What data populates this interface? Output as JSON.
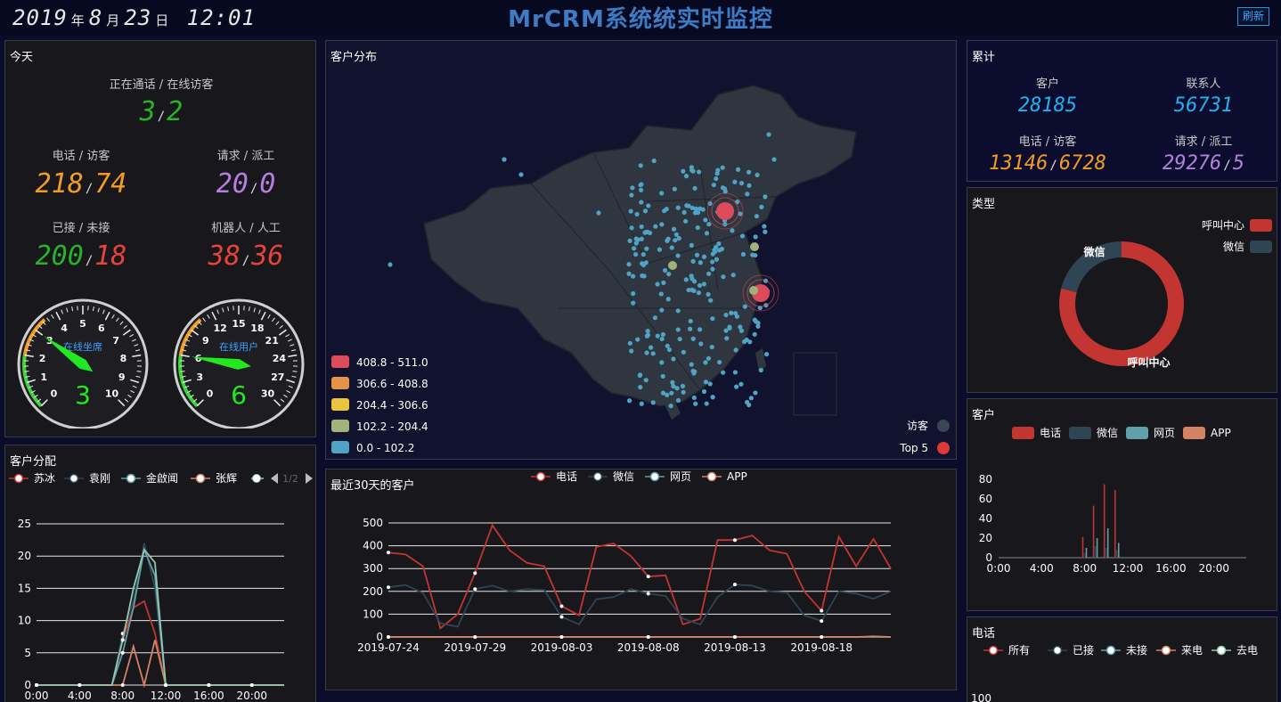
{
  "header": {
    "year": "2019",
    "y_unit": "年",
    "month": "8",
    "m_unit": "月",
    "day": "23",
    "d_unit": "日",
    "time": "12:01",
    "title": "MrCRM系统统实时监控",
    "refresh_label": "刷新"
  },
  "today": {
    "title": "今天",
    "live_label": "正在通话 / 在线访客",
    "live_calls": "3",
    "live_visitors": "2",
    "calls_label": "电话 / 访客",
    "calls": "218",
    "visitors": "74",
    "requests_label": "请求 / 派工",
    "requests": "20",
    "dispatch": "0",
    "answered_label": "已接 / 未接",
    "answered": "200",
    "missed": "18",
    "robot_label": "机器人 / 人工",
    "robot": "38",
    "human": "36",
    "gauge1": {
      "label": "在线坐席",
      "value": "3",
      "max": 10,
      "ticks": [
        "0",
        "1",
        "2",
        "3",
        "4",
        "5",
        "6",
        "7",
        "8",
        "9",
        "10"
      ]
    },
    "gauge2": {
      "label": "在线用户",
      "value": "6",
      "max": 30,
      "ticks": [
        "0",
        "3",
        "6",
        "9",
        "12",
        "15",
        "18",
        "21",
        "24",
        "27",
        "30"
      ]
    }
  },
  "distribution": {
    "title": "客户分配",
    "legend": [
      "苏冰",
      "袁刚",
      "金啟闻",
      "张辉"
    ],
    "pager": "1/2",
    "colors": {
      "苏冰": "#c23531",
      "袁刚": "#2f4554",
      "金啟闻": "#61a0a8",
      "张辉": "#d48265"
    }
  },
  "map": {
    "title": "客户分布",
    "ranges": [
      {
        "label": "408.8 - 511.0",
        "color": "#dd4b5a"
      },
      {
        "label": "306.6 - 408.8",
        "color": "#e4944a"
      },
      {
        "label": "204.4 - 306.6",
        "color": "#e8c53a"
      },
      {
        "label": "102.2 - 204.4",
        "color": "#9fb37a"
      },
      {
        "label": "0.0 - 102.2",
        "color": "#4fa3c4"
      }
    ],
    "series_legend": [
      {
        "label": "访客",
        "color": "#3a4656"
      },
      {
        "label": "Top 5",
        "color": "#dc3a3a"
      }
    ]
  },
  "last30": {
    "title": "最近30天的客户",
    "legend": [
      "电话",
      "微信",
      "网页",
      "APP"
    ]
  },
  "totals": {
    "title": "累计",
    "customers_label": "客户",
    "customers": "28185",
    "contacts_label": "联系人",
    "contacts": "56731",
    "calls_label": "电话 / 访客",
    "calls": "13146",
    "visitors": "6728",
    "requests_label": "请求 / 派工",
    "requests": "29276",
    "dispatch": "5"
  },
  "types": {
    "title": "类型",
    "legend": [
      {
        "label": "呼叫中心",
        "color": "#c23531"
      },
      {
        "label": "微信",
        "color": "#2f4554"
      }
    ]
  },
  "customers": {
    "title": "客户",
    "legend": [
      {
        "label": "电话",
        "color": "#c23531"
      },
      {
        "label": "微信",
        "color": "#2f4554"
      },
      {
        "label": "网页",
        "color": "#61a0a8"
      },
      {
        "label": "APP",
        "color": "#d48265"
      }
    ]
  },
  "phone": {
    "title": "电话",
    "legend": [
      "所有",
      "已接",
      "未接",
      "来电",
      "去电"
    ],
    "y_tick_top": "100"
  },
  "chart_data": [
    {
      "type": "line",
      "id": "distribution",
      "x": [
        "0:00",
        "1:00",
        "2:00",
        "3:00",
        "4:00",
        "5:00",
        "6:00",
        "7:00",
        "8:00",
        "9:00",
        "10:00",
        "11:00",
        "12:00",
        "13:00",
        "14:00",
        "15:00",
        "16:00",
        "17:00",
        "18:00",
        "19:00",
        "20:00",
        "21:00",
        "22:00",
        "23:00"
      ],
      "xticks": [
        "0:00",
        "4:00",
        "8:00",
        "12:00",
        "16:00",
        "20:00"
      ],
      "ylim": [
        0,
        25
      ],
      "yticks": [
        "0",
        "5",
        "10",
        "15",
        "20",
        "25"
      ],
      "series": [
        {
          "name": "苏冰",
          "color": "#c23531",
          "values": [
            0,
            0,
            0,
            0,
            0,
            0,
            0,
            0,
            7,
            12,
            13,
            8,
            0,
            0,
            0,
            0,
            0,
            0,
            0,
            0,
            0,
            0,
            0,
            0
          ]
        },
        {
          "name": "袁刚",
          "color": "#2f4554",
          "values": [
            0,
            0,
            0,
            0,
            0,
            0,
            0,
            0,
            8,
            13,
            22,
            15,
            0,
            0,
            0,
            0,
            0,
            0,
            0,
            0,
            0,
            0,
            0,
            0
          ]
        },
        {
          "name": "金啟闻",
          "color": "#61a0a8",
          "values": [
            0,
            0,
            0,
            0,
            0,
            0,
            0,
            0,
            5,
            12,
            21,
            17,
            0,
            0,
            0,
            0,
            0,
            0,
            0,
            0,
            0,
            0,
            0,
            0
          ]
        },
        {
          "name": "张辉",
          "color": "#d48265",
          "values": [
            0,
            0,
            0,
            0,
            0,
            0,
            0,
            0,
            0,
            6,
            0,
            7,
            0,
            0,
            0,
            0,
            0,
            0,
            0,
            0,
            0,
            0,
            0,
            0
          ]
        },
        {
          "name": "",
          "color": "#91c7ae",
          "values": [
            0,
            0,
            0,
            0,
            0,
            0,
            0,
            0,
            7,
            15,
            21,
            19,
            0,
            0,
            0,
            0,
            0,
            0,
            0,
            0,
            0,
            0,
            0,
            0
          ]
        }
      ]
    },
    {
      "type": "line",
      "id": "last30",
      "x": [
        "2019-07-24",
        "2019-07-25",
        "2019-07-26",
        "2019-07-27",
        "2019-07-28",
        "2019-07-29",
        "2019-07-30",
        "2019-07-31",
        "2019-08-01",
        "2019-08-02",
        "2019-08-03",
        "2019-08-04",
        "2019-08-05",
        "2019-08-06",
        "2019-08-07",
        "2019-08-08",
        "2019-08-09",
        "2019-08-10",
        "2019-08-11",
        "2019-08-12",
        "2019-08-13",
        "2019-08-14",
        "2019-08-15",
        "2019-08-16",
        "2019-08-17",
        "2019-08-18",
        "2019-08-19",
        "2019-08-20",
        "2019-08-21",
        "2019-08-22"
      ],
      "xticks": [
        "2019-07-24",
        "2019-07-29",
        "2019-08-03",
        "2019-08-08",
        "2019-08-13",
        "2019-08-18"
      ],
      "ylim": [
        0,
        500
      ],
      "yticks": [
        "0",
        "100",
        "200",
        "300",
        "400",
        "500"
      ],
      "series": [
        {
          "name": "电话",
          "color": "#c23531",
          "values": [
            370,
            362,
            310,
            38,
            100,
            280,
            490,
            380,
            325,
            310,
            135,
            95,
            395,
            410,
            355,
            265,
            270,
            55,
            80,
            425,
            425,
            445,
            380,
            365,
            200,
            115,
            440,
            310,
            430,
            300
          ]
        },
        {
          "name": "微信",
          "color": "#2f4554",
          "values": [
            218,
            228,
            192,
            60,
            45,
            210,
            225,
            200,
            210,
            205,
            88,
            55,
            165,
            175,
            210,
            190,
            180,
            80,
            55,
            175,
            230,
            225,
            200,
            195,
            95,
            70,
            200,
            190,
            168,
            200
          ]
        },
        {
          "name": "网页",
          "color": "#61a0a8",
          "values": [
            0,
            0,
            0,
            0,
            0,
            0,
            0,
            0,
            0,
            0,
            0,
            0,
            0,
            0,
            0,
            0,
            0,
            0,
            0,
            0,
            0,
            0,
            0,
            0,
            0,
            0,
            0,
            0,
            0,
            0
          ]
        },
        {
          "name": "APP",
          "color": "#d48265",
          "values": [
            0,
            0,
            0,
            0,
            0,
            0,
            0,
            0,
            0,
            0,
            0,
            0,
            0,
            0,
            0,
            0,
            0,
            0,
            0,
            0,
            0,
            0,
            0,
            0,
            0,
            0,
            0,
            0,
            3,
            0
          ]
        }
      ]
    },
    {
      "type": "pie",
      "id": "types",
      "slices": [
        {
          "name": "呼叫中心",
          "value": 79,
          "color": "#c23531"
        },
        {
          "name": "微信",
          "value": 21,
          "color": "#2f4554"
        }
      ]
    },
    {
      "type": "bar",
      "id": "customers",
      "x": [
        "0:00",
        "1:00",
        "2:00",
        "3:00",
        "4:00",
        "5:00",
        "6:00",
        "7:00",
        "8:00",
        "9:00",
        "10:00",
        "11:00",
        "12:00",
        "13:00",
        "14:00",
        "15:00",
        "16:00",
        "17:00",
        "18:00",
        "19:00",
        "20:00",
        "21:00",
        "22:00",
        "23:00"
      ],
      "xticks": [
        "0:00",
        "4:00",
        "8:00",
        "12:00",
        "16:00",
        "20:00"
      ],
      "ylim": [
        0,
        80
      ],
      "yticks": [
        "0",
        "20",
        "40",
        "60",
        "80"
      ],
      "series": [
        {
          "name": "电话",
          "color": "#c23531",
          "values": [
            0,
            0,
            0,
            0,
            0,
            0,
            0,
            0,
            21,
            53,
            75,
            69,
            0,
            0,
            0,
            0,
            0,
            0,
            0,
            0,
            0,
            0,
            0,
            0
          ]
        },
        {
          "name": "微信",
          "color": "#2f4554",
          "values": [
            0,
            0,
            0,
            0,
            1,
            0,
            0,
            0,
            5,
            12,
            10,
            8,
            0,
            0,
            0,
            0,
            0,
            0,
            0,
            0,
            0,
            0,
            0,
            0
          ]
        },
        {
          "name": "网页",
          "color": "#61a0a8",
          "values": [
            0,
            0,
            0,
            0,
            0,
            0,
            0,
            0,
            10,
            20,
            30,
            15,
            0,
            0,
            0,
            0,
            0,
            0,
            0,
            0,
            0,
            0,
            0,
            0
          ]
        },
        {
          "name": "APP",
          "color": "#d48265",
          "values": [
            0,
            0,
            0,
            0,
            0,
            0,
            0,
            0,
            0,
            0,
            0,
            0,
            0,
            0,
            0,
            0,
            0,
            0,
            0,
            0,
            0,
            0,
            0,
            0
          ]
        }
      ]
    }
  ]
}
